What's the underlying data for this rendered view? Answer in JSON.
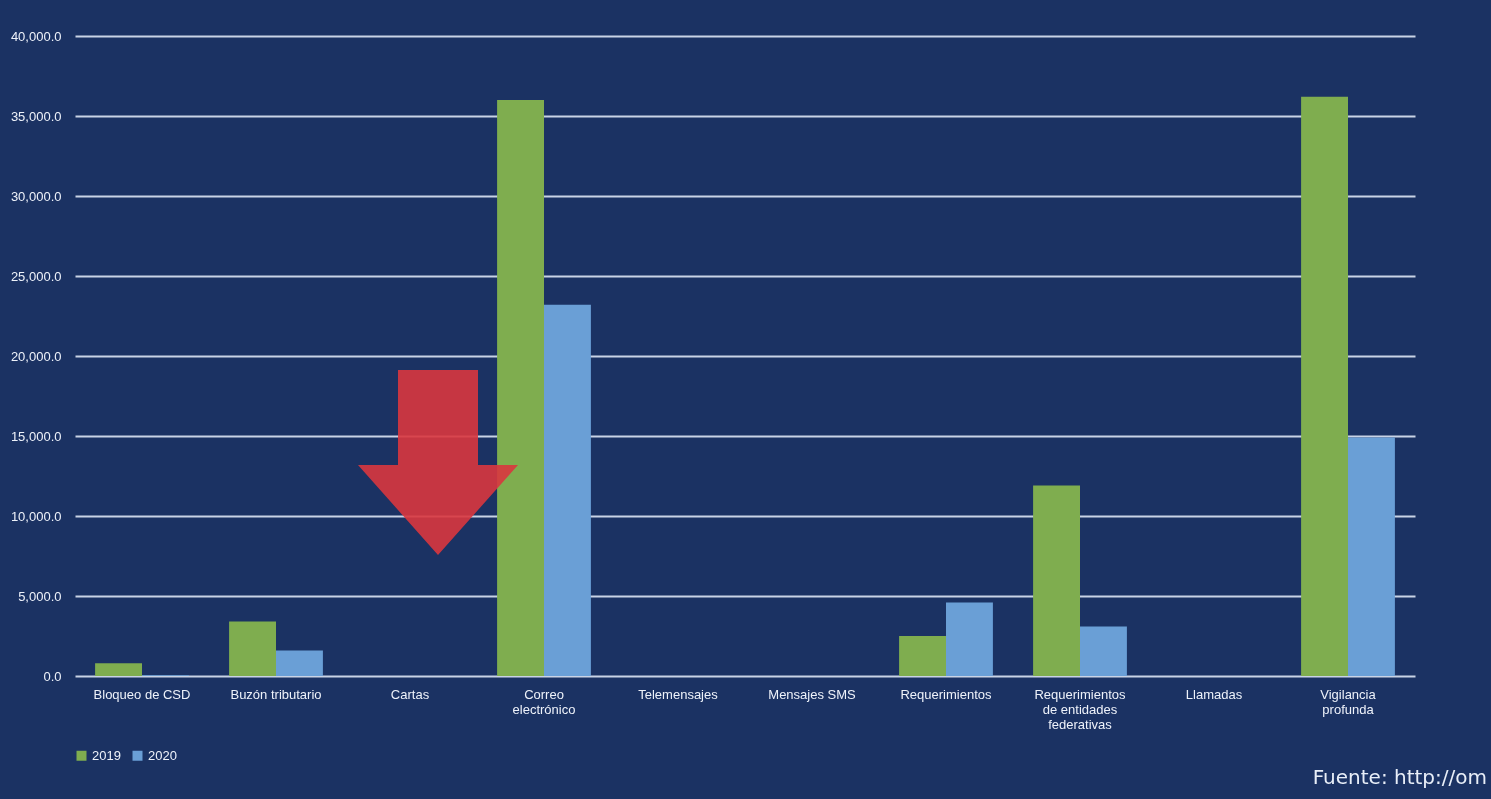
{
  "chart_data": {
    "type": "bar",
    "categories": [
      "Bloqueo de CSD",
      "Buzón tributario",
      "Cartas",
      "Correo electrónico",
      "Telemensajes",
      "Mensajes SMS",
      "Requerimientos",
      "Requerimientos de entidades federativas",
      "Llamadas",
      "Vigilancia profunda"
    ],
    "series": [
      {
        "name": "2019",
        "color": "#7fad4f",
        "values": [
          800,
          3400,
          0,
          36000,
          0,
          0,
          2500,
          11900,
          0,
          36200
        ]
      },
      {
        "name": "2020",
        "color": "#6a9fd6",
        "values": [
          50,
          1600,
          0,
          23200,
          0,
          0,
          4600,
          3100,
          0,
          14900
        ]
      }
    ],
    "ylim": [
      0,
      40000
    ],
    "yticks": [
      {
        "value": 0,
        "label": "0.0"
      },
      {
        "value": 5000,
        "label": "5,000.0"
      },
      {
        "value": 10000,
        "label": "10,000.0"
      },
      {
        "value": 15000,
        "label": "15,000.0"
      },
      {
        "value": 20000,
        "label": "20,000.0"
      },
      {
        "value": 25000,
        "label": "25,000.0"
      },
      {
        "value": 30000,
        "label": "30,000.0"
      },
      {
        "value": 35000,
        "label": "35,000.0"
      },
      {
        "value": 40000,
        "label": "40,000.0"
      }
    ],
    "grid": "y",
    "legend": "bottom",
    "annotations": [
      "Fuente: http://om"
    ]
  }
}
